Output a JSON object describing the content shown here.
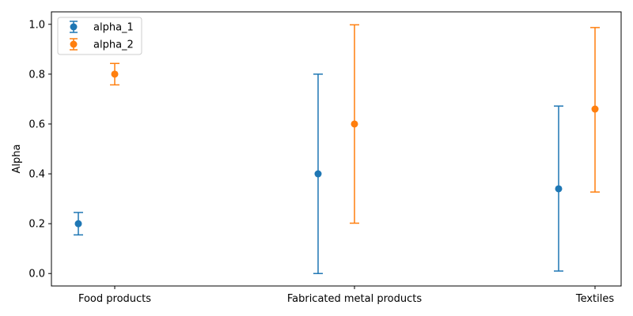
{
  "chart_data": {
    "type": "scatter",
    "title": "",
    "xlabel": "",
    "ylabel": "Alpha",
    "categories": [
      "Food products",
      "Fabricated metal products",
      "Textiles"
    ],
    "ylim": [
      -0.05,
      1.05
    ],
    "yticks": [
      "0.0",
      "0.2",
      "0.4",
      "0.6",
      "0.8",
      "1.0"
    ],
    "grid": false,
    "legend_position": "top-left",
    "series": [
      {
        "name": "alpha_1",
        "color": "#1f77b4",
        "values": [
          0.2,
          0.4,
          0.34
        ],
        "err_low": [
          0.155,
          0.0,
          0.01
        ],
        "err_high": [
          0.245,
          0.8,
          0.672
        ]
      },
      {
        "name": "alpha_2",
        "color": "#ff7f0e",
        "values": [
          0.8,
          0.6,
          0.66
        ],
        "err_low": [
          0.757,
          0.202,
          0.327
        ],
        "err_high": [
          0.843,
          0.998,
          0.987
        ]
      }
    ]
  }
}
